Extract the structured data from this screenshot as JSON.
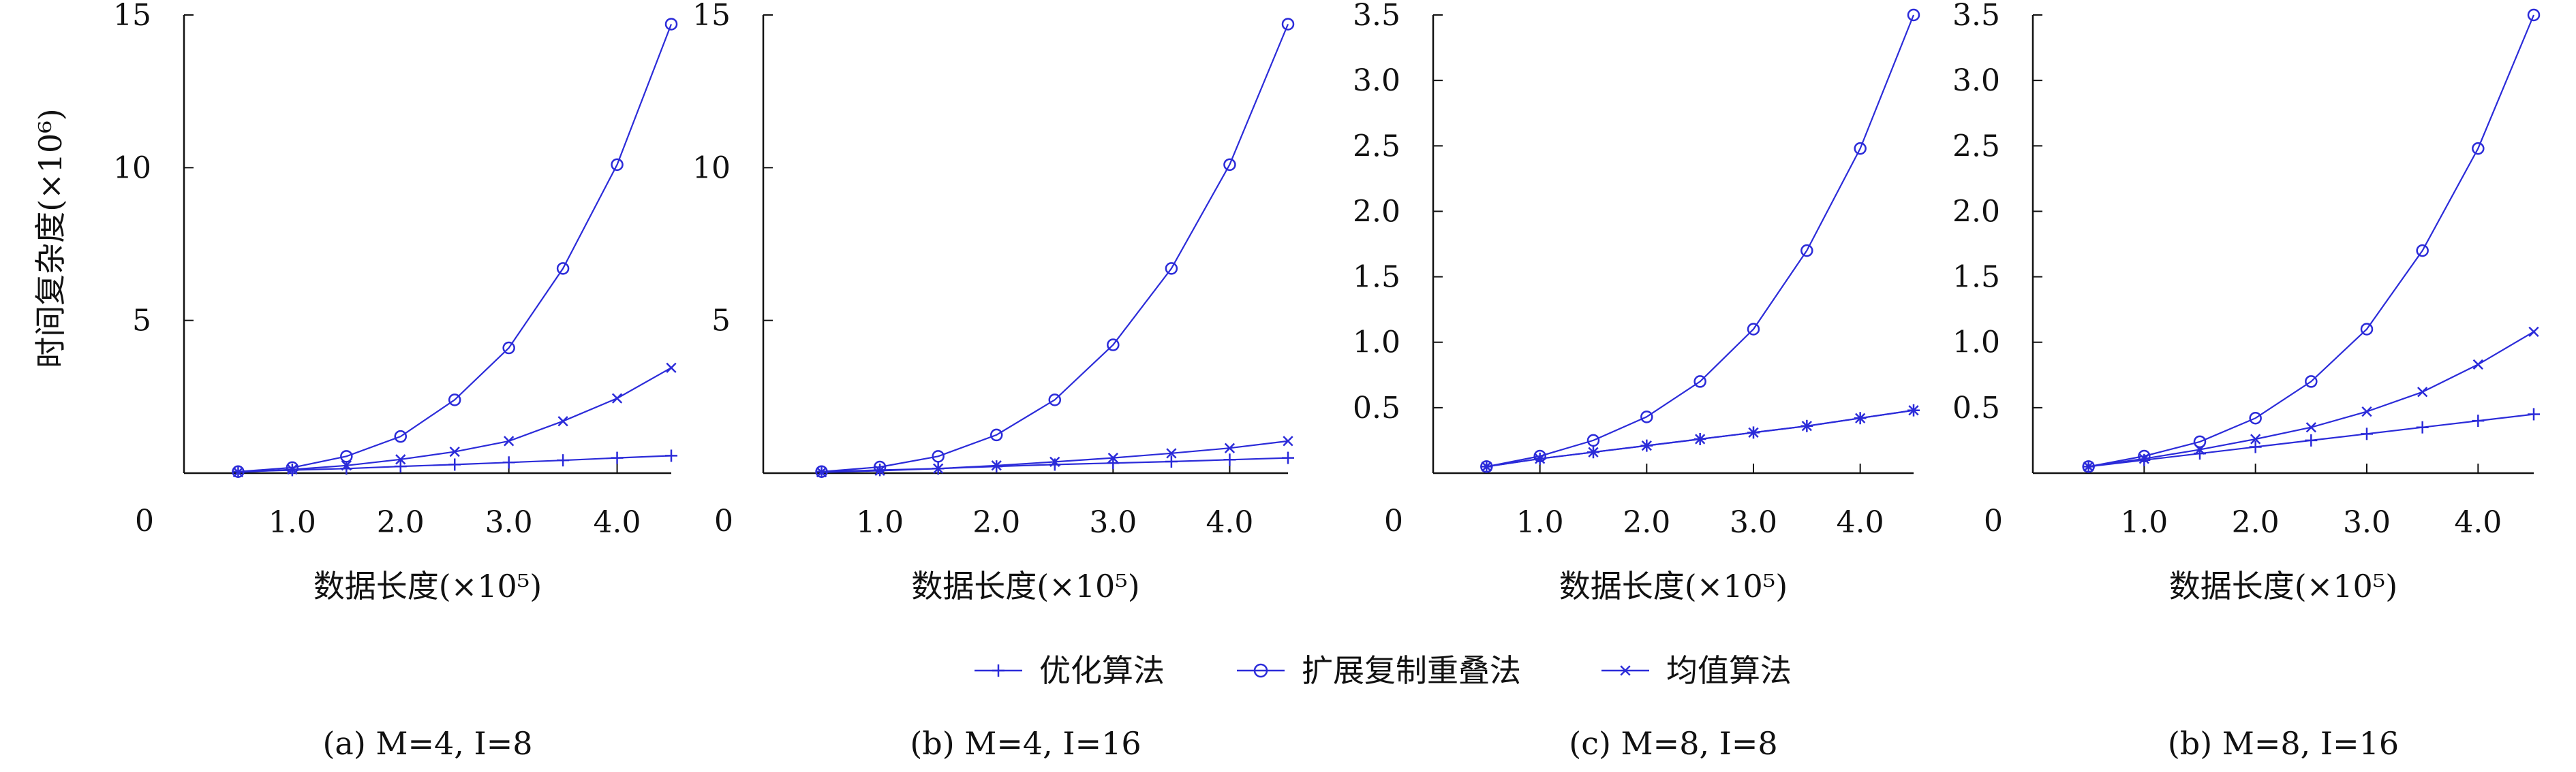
{
  "figure": {
    "y_axis_title": "时间复杂度(×10⁶)",
    "x_axis_title": "数据长度(×10⁵)",
    "x_zero_label": "0",
    "legend": [
      {
        "label": "优化算法",
        "marker": "plus-icon",
        "color": "#2b2bd9"
      },
      {
        "label": "扩展复制重叠法",
        "marker": "circle-icon",
        "color": "#2b2bd9"
      },
      {
        "label": "均值算法",
        "marker": "cross-icon",
        "color": "#2b2bd9"
      }
    ],
    "line_color": "#2b2bd9",
    "axis_color": "#111111"
  },
  "chart_data": [
    {
      "type": "line",
      "caption": "(a) M=4, I=8",
      "x": [
        0.5,
        1.0,
        1.5,
        2.0,
        2.5,
        3.0,
        3.5,
        4.0,
        4.5
      ],
      "xlim": [
        0,
        4.5
      ],
      "ylim": [
        0,
        15
      ],
      "xticks": [
        1.0,
        2.0,
        3.0,
        4.0
      ],
      "xtick_labels": [
        "1.0",
        "2.0",
        "3.0",
        "4.0"
      ],
      "yticks": [
        5,
        10,
        15
      ],
      "ytick_labels": [
        "5",
        "10",
        "15"
      ],
      "series": [
        {
          "name": "优化算法",
          "marker": "plus",
          "values": [
            0.05,
            0.1,
            0.15,
            0.22,
            0.28,
            0.35,
            0.42,
            0.5,
            0.57
          ]
        },
        {
          "name": "扩展复制重叠法",
          "marker": "circle",
          "values": [
            0.05,
            0.18,
            0.55,
            1.2,
            2.4,
            4.1,
            6.7,
            10.1,
            14.7
          ]
        },
        {
          "name": "均值算法",
          "marker": "cross",
          "values": [
            0.03,
            0.12,
            0.25,
            0.45,
            0.7,
            1.05,
            1.7,
            2.45,
            3.45
          ]
        }
      ]
    },
    {
      "type": "line",
      "caption": "(b) M=4, I=16",
      "x": [
        0.5,
        1.0,
        1.5,
        2.0,
        2.5,
        3.0,
        3.5,
        4.0,
        4.5
      ],
      "xlim": [
        0,
        4.5
      ],
      "ylim": [
        0,
        15
      ],
      "xticks": [
        1.0,
        2.0,
        3.0,
        4.0
      ],
      "xtick_labels": [
        "1.0",
        "2.0",
        "3.0",
        "4.0"
      ],
      "yticks": [
        5,
        10,
        15
      ],
      "ytick_labels": [
        "5",
        "10",
        "15"
      ],
      "series": [
        {
          "name": "优化算法",
          "marker": "plus",
          "values": [
            0.05,
            0.1,
            0.15,
            0.22,
            0.28,
            0.33,
            0.38,
            0.44,
            0.5
          ]
        },
        {
          "name": "扩展复制重叠法",
          "marker": "circle",
          "values": [
            0.05,
            0.2,
            0.55,
            1.25,
            2.4,
            4.2,
            6.7,
            10.1,
            14.7
          ]
        },
        {
          "name": "均值算法",
          "marker": "cross",
          "values": [
            0.03,
            0.08,
            0.15,
            0.25,
            0.37,
            0.5,
            0.65,
            0.82,
            1.05
          ]
        }
      ]
    },
    {
      "type": "line",
      "caption": "(c) M=8, I=8",
      "x": [
        0.5,
        1.0,
        1.5,
        2.0,
        2.5,
        3.0,
        3.5,
        4.0,
        4.5
      ],
      "xlim": [
        0,
        4.5
      ],
      "ylim": [
        0,
        3.5
      ],
      "xticks": [
        1.0,
        2.0,
        3.0,
        4.0
      ],
      "xtick_labels": [
        "1.0",
        "2.0",
        "3.0",
        "4.0"
      ],
      "yticks": [
        0.5,
        1.0,
        1.5,
        2.0,
        2.5,
        3.0,
        3.5
      ],
      "ytick_labels": [
        "0.5",
        "1.0",
        "1.5",
        "2.0",
        "2.5",
        "3.0",
        "3.5"
      ],
      "series": [
        {
          "name": "优化算法",
          "marker": "plus",
          "values": [
            0.05,
            0.11,
            0.16,
            0.21,
            0.26,
            0.31,
            0.36,
            0.42,
            0.48
          ]
        },
        {
          "name": "扩展复制重叠法",
          "marker": "circle",
          "values": [
            0.05,
            0.13,
            0.25,
            0.43,
            0.7,
            1.1,
            1.7,
            2.48,
            3.5
          ]
        },
        {
          "name": "均值算法",
          "marker": "cross",
          "values": [
            0.05,
            0.11,
            0.16,
            0.21,
            0.26,
            0.31,
            0.36,
            0.42,
            0.48
          ]
        }
      ]
    },
    {
      "type": "line",
      "caption": "(b) M=8, I=16",
      "x": [
        0.5,
        1.0,
        1.5,
        2.0,
        2.5,
        3.0,
        3.5,
        4.0,
        4.5
      ],
      "xlim": [
        0,
        4.5
      ],
      "ylim": [
        0,
        3.5
      ],
      "xticks": [
        1.0,
        2.0,
        3.0,
        4.0
      ],
      "xtick_labels": [
        "1.0",
        "2.0",
        "3.0",
        "4.0"
      ],
      "yticks": [
        0.5,
        1.0,
        1.5,
        2.0,
        2.5,
        3.0,
        3.5
      ],
      "ytick_labels": [
        "0.5",
        "1.0",
        "1.5",
        "2.0",
        "2.5",
        "3.0",
        "3.5"
      ],
      "series": [
        {
          "name": "优化算法",
          "marker": "plus",
          "values": [
            0.05,
            0.1,
            0.15,
            0.2,
            0.25,
            0.3,
            0.35,
            0.4,
            0.45
          ]
        },
        {
          "name": "扩展复制重叠法",
          "marker": "circle",
          "values": [
            0.05,
            0.13,
            0.24,
            0.42,
            0.7,
            1.1,
            1.7,
            2.48,
            3.5
          ]
        },
        {
          "name": "均值算法",
          "marker": "cross",
          "values": [
            0.05,
            0.11,
            0.18,
            0.26,
            0.35,
            0.47,
            0.62,
            0.83,
            1.08
          ]
        }
      ]
    }
  ]
}
